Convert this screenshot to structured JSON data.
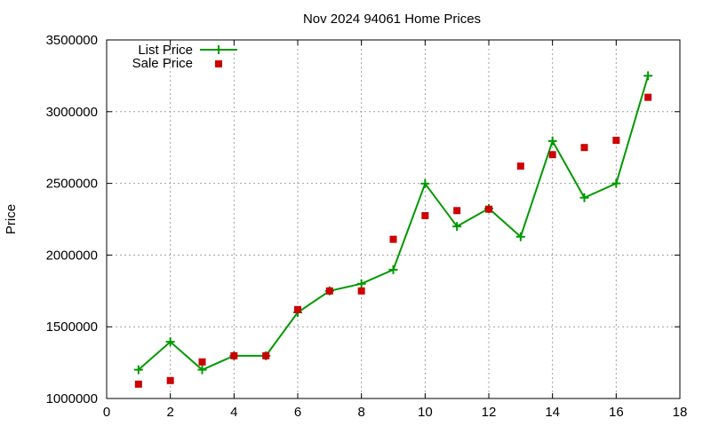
{
  "chart_data": {
    "type": "line",
    "title": "Nov 2024 94061 Home Prices",
    "xlabel": "",
    "ylabel": "Price",
    "xlim": [
      0,
      18
    ],
    "ylim": [
      1000000,
      3500000
    ],
    "x_ticks": [
      "0",
      "2",
      "4",
      "6",
      "8",
      "10",
      "12",
      "14",
      "16",
      "18"
    ],
    "y_ticks": [
      "1000000",
      "1500000",
      "2000000",
      "2500000",
      "3000000",
      "3500000"
    ],
    "grid": true,
    "legend_position": "top-left",
    "series": [
      {
        "name": "List Price",
        "style": "line+plus",
        "color": "#009900",
        "x": [
          1,
          2,
          3,
          4,
          5,
          6,
          7,
          8,
          9,
          10,
          11,
          12,
          13,
          14,
          15,
          16,
          17
        ],
        "y": [
          1200000,
          1395000,
          1200000,
          1298000,
          1298000,
          1600000,
          1750000,
          1800000,
          1898000,
          2498000,
          2200000,
          2325000,
          2128000,
          2795000,
          2400000,
          2500000,
          3250000
        ]
      },
      {
        "name": "Sale Price",
        "style": "points-square",
        "color": "#cc0000",
        "x": [
          1,
          2,
          3,
          4,
          5,
          6,
          7,
          8,
          9,
          10,
          11,
          12,
          13,
          14,
          15,
          16,
          17
        ],
        "y": [
          1100000,
          1125000,
          1255000,
          1298000,
          1298000,
          1620000,
          1750000,
          1750000,
          2110000,
          2275000,
          2310000,
          2320000,
          2620000,
          2700000,
          2750000,
          2800000,
          3100000
        ]
      }
    ]
  }
}
